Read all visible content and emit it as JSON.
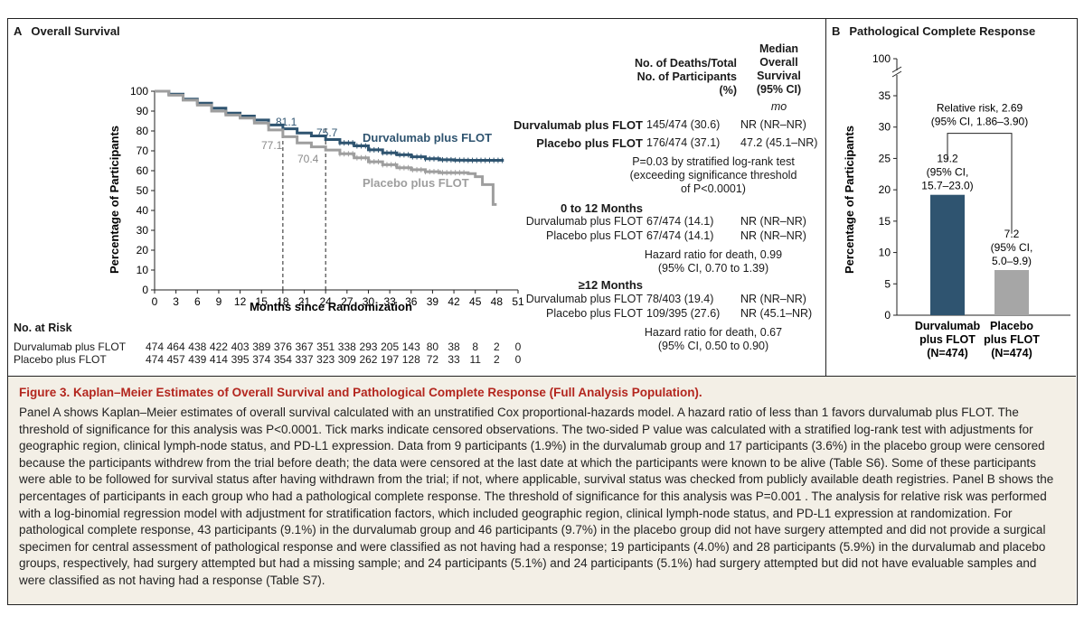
{
  "panel_a": {
    "letter": "A",
    "title": "Overall Survival",
    "ylabel": "Percentage of Participants",
    "xlabel": "Months since Randomization",
    "line_durva_label": "Durvalumab plus FLOT",
    "line_placebo_label": "Placebo plus FLOT",
    "annot_durva_18": "81.1",
    "annot_durva_24": "75.7",
    "annot_placebo_18": "77.1",
    "annot_placebo_24": "70.4",
    "table": {
      "hdr_deaths": "No. of Deaths/Total\nNo. of Participants\n(%)",
      "hdr_median": "Median\nOverall\nSurvival\n(95% CI)",
      "unit_mo": "mo",
      "overall": [
        {
          "group": "Durvalumab plus FLOT",
          "deaths": "145/474 (30.6)",
          "median": "NR (NR–NR)"
        },
        {
          "group": "Placebo plus FLOT",
          "deaths": "176/474 (37.1)",
          "median": "47.2 (45.1–NR)"
        }
      ],
      "overall_note": "P=0.03 by stratified log-rank test\n(exceeding significance threshold\nof P<0.0001)",
      "sub1_title": "0 to 12 Months",
      "sub1": [
        {
          "group": "Durvalumab plus FLOT",
          "deaths": "67/474 (14.1)",
          "median": "NR (NR–NR)"
        },
        {
          "group": "Placebo plus FLOT",
          "deaths": "67/474 (14.1)",
          "median": "NR (NR–NR)"
        }
      ],
      "sub1_note": "Hazard ratio for death, 0.99\n(95% CI, 0.70 to 1.39)",
      "sub2_title": "≥12 Months",
      "sub2": [
        {
          "group": "Durvalumab plus FLOT",
          "deaths": "78/403 (19.4)",
          "median": "NR (NR–NR)"
        },
        {
          "group": "Placebo plus FLOT",
          "deaths": "109/395 (27.6)",
          "median": "NR (45.1–NR)"
        }
      ],
      "sub2_note": "Hazard ratio for death, 0.67\n(95% CI, 0.50 to 0.90)"
    },
    "risk_title": "No. at Risk",
    "risk_rows": [
      {
        "label": "Durvalumab plus FLOT",
        "values": [
          "474",
          "464",
          "438",
          "422",
          "403",
          "389",
          "376",
          "367",
          "351",
          "338",
          "293",
          "205",
          "143",
          "80",
          "38",
          "8",
          "2",
          "0"
        ]
      },
      {
        "label": "Placebo plus FLOT",
        "values": [
          "474",
          "457",
          "439",
          "414",
          "395",
          "374",
          "354",
          "337",
          "323",
          "309",
          "262",
          "197",
          "128",
          "72",
          "33",
          "11",
          "2",
          "0"
        ]
      }
    ]
  },
  "panel_b": {
    "letter": "B",
    "title": "Pathological Complete Response",
    "ylabel": "Percentage of Participants",
    "rr_label": "Relative risk, 2.69\n(95% CI, 1.86–3.90)",
    "bar_labels": [
      "19.2\n(95% CI,\n15.7–23.0)",
      "7.2\n(95% CI,\n5.0–9.9)"
    ],
    "group_labels": [
      "Durvalumab\nplus FLOT\n(N=474)",
      "Placebo\nplus FLOT\n(N=474)"
    ]
  },
  "caption": {
    "title": "Figure 3. Kaplan–Meier Estimates of Overall Survival and Pathological Complete Response (Full Analysis Population).",
    "body": "Panel A shows Kaplan–Meier estimates of overall survival calculated with an unstratified Cox proportional-hazards model. A hazard ratio of less than 1 favors durvalumab plus FLOT. The threshold of significance for this analysis was P<0.0001. Tick marks indicate censored observations. The two-sided P value was calculated with a stratified log-rank test with adjustments for geographic region, clinical lymph-node status, and PD-L1 expression. Data from 9 participants (1.9%) in the durvalumab group and 17 participants (3.6%) in the placebo group were censored because the participants withdrew from the trial before death; the data were censored at the last date at which the participants were known to be alive (Table S6). Some of these participants were able to be followed for survival status after having withdrawn from the trial; if not, where applicable, survival status was checked from publicly available death registries. Panel B shows the percentages of participants in each group who had a pathological complete response. The threshold of significance for this analysis was P=0.001 . The analysis for relative risk was performed with a log-binomial regression model with adjustment for stratification factors, which included geographic region, clinical lymph-node status, and PD-L1 expression at randomization. For pathological complete response, 43 participants (9.1%) in the durvalumab group and 46 participants (9.7%) in the placebo group did not have surgery attempted and did not provide a surgical specimen for central assessment of pathological response and were classified as not having had a response; 19 participants (4.0%) and 28 participants (5.9%) in the durvalumab and placebo groups, respectively, had surgery attempted but had a missing sample; and 24 participants (5.1%) and 24 participants (5.1%) had surgery attempted but did not have evaluable samples and were classified as not having had a response (Table S7)."
  },
  "colors": {
    "durva": "#2f5470",
    "placebo": "#9e9e9e",
    "caption_title": "#b3261e",
    "caption_bg": "#f3efe6"
  },
  "chart_data": [
    {
      "type": "line",
      "title": "Overall Survival",
      "xlabel": "Months since Randomization",
      "ylabel": "Percentage of Participants",
      "xlim": [
        0,
        51
      ],
      "ylim": [
        0,
        100
      ],
      "xticks": [
        0,
        3,
        6,
        9,
        12,
        15,
        18,
        21,
        24,
        27,
        30,
        33,
        36,
        39,
        42,
        45,
        48,
        51
      ],
      "yticks": [
        0,
        10,
        20,
        30,
        40,
        50,
        60,
        70,
        80,
        90,
        100
      ],
      "series": [
        {
          "name": "Durvalumab plus FLOT",
          "x": [
            0,
            2,
            4,
            6,
            8,
            10,
            12,
            14,
            16,
            18,
            20,
            22,
            24,
            26,
            28,
            30,
            32,
            34,
            36,
            38,
            40,
            42,
            44,
            46,
            48,
            49
          ],
          "y": [
            100,
            98.5,
            96,
            94,
            91.5,
            89,
            87.5,
            85.5,
            83,
            81.1,
            79,
            77.5,
            75.7,
            74,
            72.5,
            70.5,
            69,
            68,
            67,
            66,
            65.5,
            65.3,
            65.2,
            65.2,
            65.2,
            65.2
          ]
        },
        {
          "name": "Placebo plus FLOT",
          "x": [
            0,
            2,
            4,
            6,
            8,
            10,
            12,
            14,
            16,
            18,
            20,
            22,
            24,
            26,
            28,
            30,
            32,
            34,
            36,
            38,
            40,
            42,
            44,
            45,
            46,
            47,
            47.5,
            48
          ],
          "y": [
            100,
            98,
            95.5,
            93,
            90,
            88,
            86.5,
            84,
            80.5,
            77.1,
            74,
            72,
            70.4,
            68.5,
            66.5,
            64.5,
            63,
            61.5,
            60.5,
            59.5,
            59,
            59,
            58.5,
            57,
            53,
            53,
            43,
            43
          ]
        }
      ],
      "annotations": [
        {
          "series": "Durvalumab plus FLOT",
          "x": 18,
          "y": 81.1,
          "text": "81.1"
        },
        {
          "series": "Durvalumab plus FLOT",
          "x": 24,
          "y": 75.7,
          "text": "75.7"
        },
        {
          "series": "Placebo plus FLOT",
          "x": 18,
          "y": 77.1,
          "text": "77.1"
        },
        {
          "series": "Placebo plus FLOT",
          "x": 24,
          "y": 70.4,
          "text": "70.4"
        }
      ],
      "reference_lines_x": [
        18,
        24
      ]
    },
    {
      "type": "bar",
      "title": "Pathological Complete Response",
      "ylabel": "Percentage of Participants",
      "categories": [
        "Durvalumab plus FLOT (N=474)",
        "Placebo plus FLOT (N=474)"
      ],
      "values": [
        19.2,
        7.2
      ],
      "ci": [
        [
          15.7,
          23.0
        ],
        [
          5.0,
          9.9
        ]
      ],
      "ylim": [
        0,
        35
      ],
      "yticks": [
        0,
        5,
        10,
        15,
        20,
        25,
        30,
        35,
        100
      ],
      "axis_break": true
    }
  ]
}
